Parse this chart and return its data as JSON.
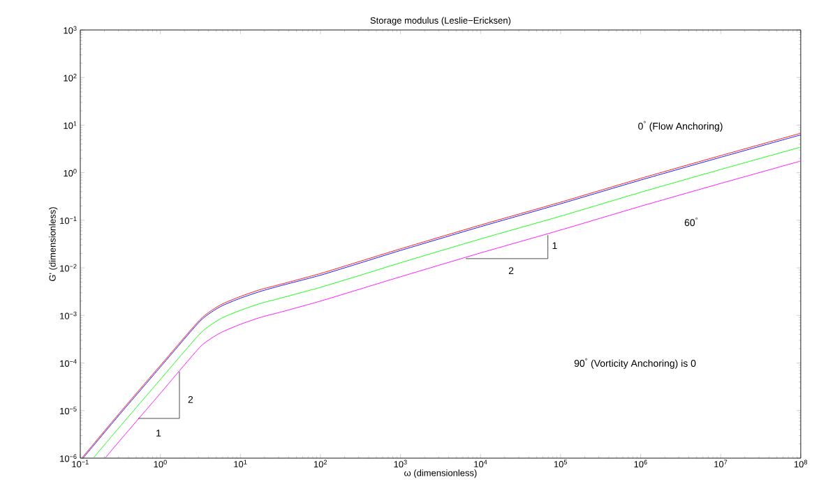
{
  "chart_data": {
    "type": "line",
    "title": "Storage modulus (Leslie−Ericksen)",
    "xlabel": "ω (dimensionless)",
    "ylabel": "G' (dimensionless)",
    "log": "xy",
    "grid": false,
    "legend": false,
    "line_style": "solid",
    "marker": "none",
    "xlim": [
      0.1,
      100000000
    ],
    "ylim": [
      1e-06,
      1000
    ],
    "xticks": [
      {
        "value": 0.1,
        "label": "10$^{−1}$"
      },
      {
        "value": 1,
        "label": "10$^{0}$"
      },
      {
        "value": 10,
        "label": "10$^{1}$"
      },
      {
        "value": 100,
        "label": "10$^{2}$"
      },
      {
        "value": 1000,
        "label": "10$^{3}$"
      },
      {
        "value": 10000,
        "label": "10$^{4}$"
      },
      {
        "value": 100000,
        "label": "10$^{5}$"
      },
      {
        "value": 1000000,
        "label": "10$^{6}$"
      },
      {
        "value": 10000000,
        "label": "10$^{7}$"
      },
      {
        "value": 100000000,
        "label": "10$^{8}$"
      }
    ],
    "yticks": [
      {
        "value": 1e-06,
        "label": "10$^{−6}$"
      },
      {
        "value": 1e-05,
        "label": "10$^{−5}$"
      },
      {
        "value": 0.0001,
        "label": "10$^{−4}$"
      },
      {
        "value": 0.001,
        "label": "10$^{−3}$"
      },
      {
        "value": 0.01,
        "label": "10$^{−2}$"
      },
      {
        "value": 0.1,
        "label": "10$^{−1}$"
      },
      {
        "value": 1,
        "label": "10$^{0}$"
      },
      {
        "value": 10,
        "label": "10$^{1}$"
      },
      {
        "value": 100,
        "label": "10$^{2}$"
      },
      {
        "value": 1000,
        "label": "10$^{3}$"
      }
    ],
    "series": [
      {
        "name": "0$^{°}$ (Flow Anchoring)",
        "color": "#ff0000",
        "x": [
          0.104,
          0.316,
          1,
          3.16,
          5.62,
          10,
          17.8,
          31.6,
          100,
          316,
          1000,
          10000,
          100000,
          1000000,
          10000000,
          100000000
        ],
        "values": [
          1e-06,
          9.3e-06,
          8.9e-05,
          0.00083,
          0.00166,
          0.0025,
          0.0035,
          0.0045,
          0.0076,
          0.0138,
          0.0251,
          0.0794,
          0.24,
          0.759,
          2.29,
          6.76
        ]
      },
      {
        "color": "#0000ff",
        "x": [
          0.108,
          0.316,
          1,
          3.16,
          5.62,
          10,
          17.8,
          31.6,
          100,
          316,
          1000,
          10000,
          100000,
          1000000,
          10000000,
          100000000
        ],
        "values": [
          1e-06,
          8.6e-06,
          8.2e-05,
          0.00077,
          0.00153,
          0.0023,
          0.0032,
          0.0042,
          0.007,
          0.0127,
          0.0232,
          0.0733,
          0.222,
          0.7,
          2.11,
          6.24
        ]
      },
      {
        "color": "#00ff00",
        "x": [
          0.145,
          0.316,
          1,
          3.16,
          5.62,
          10,
          17.8,
          31.6,
          100,
          316,
          1000,
          10000,
          100000,
          1000000,
          10000000,
          100000000
        ],
        "values": [
          1e-06,
          4.7e-06,
          4.5e-05,
          0.00042,
          0.00085,
          0.00128,
          0.00179,
          0.0023,
          0.0039,
          0.007,
          0.0128,
          0.0405,
          0.122,
          0.387,
          1.17,
          3.45
        ]
      },
      {
        "name": "60$^{°}$",
        "color": "#ff00ff",
        "x": [
          0.204,
          0.316,
          1,
          3.16,
          5.62,
          10,
          17.8,
          31.6,
          100,
          316,
          1000,
          10000,
          100000,
          1000000,
          10000000,
          100000000
        ],
        "values": [
          1e-06,
          2.4e-06,
          2.3e-05,
          0.00022,
          0.00043,
          0.00065,
          0.00091,
          0.00117,
          0.002,
          0.0036,
          0.0065,
          0.0206,
          0.0624,
          0.197,
          0.595,
          1.76
        ]
      }
    ],
    "annotations": [
      "90$^{°}$ (Vorticity Anchoring) is 0",
      "2",
      "1",
      {
        "text": "1",
        "x": 69000,
        "y": 0.052
      },
      "2"
    ]
  }
}
